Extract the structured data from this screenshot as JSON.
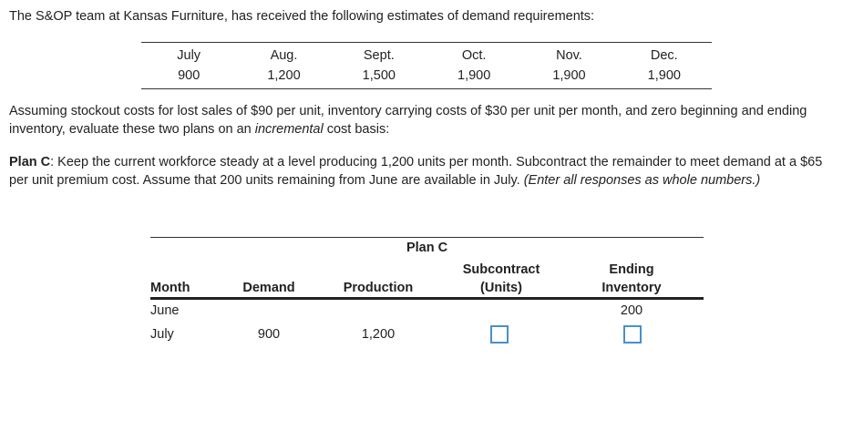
{
  "intro": "The S&OP team at Kansas Furniture, has received the following estimates of demand requirements:",
  "demand": {
    "months": [
      "July",
      "Aug.",
      "Sept.",
      "Oct.",
      "Nov.",
      "Dec."
    ],
    "values": [
      "900",
      "1,200",
      "1,500",
      "1,900",
      "1,900",
      "1,900"
    ]
  },
  "assumption": {
    "before": "Assuming stockout costs for lost sales of $90 per unit, inventory carrying costs of $30 per unit per month, and zero beginning and ending inventory, evaluate these two plans on an ",
    "italic": "incremental",
    "after": " cost basis:"
  },
  "plan_c": {
    "label": "Plan C",
    "text": ": Keep the current workforce steady at a level producing 1,200 units per month. Subcontract the remainder to meet demand at a $65 per unit premium cost. Assume that 200 units remaining from June are available in July. ",
    "note": "(Enter all responses as whole numbers.)"
  },
  "table": {
    "title": "Plan C",
    "headers": {
      "month": "Month",
      "demand": "Demand",
      "production": "Production",
      "subcontract_1": "Subcontract",
      "subcontract_2": "(Units)",
      "ending_1": "Ending",
      "ending_2": "Inventory"
    },
    "rows": {
      "june": {
        "month": "June",
        "ending_inventory": "200"
      },
      "july": {
        "month": "July",
        "demand": "900",
        "production": "1,200",
        "subcontract": "",
        "ending_inventory": ""
      }
    }
  }
}
